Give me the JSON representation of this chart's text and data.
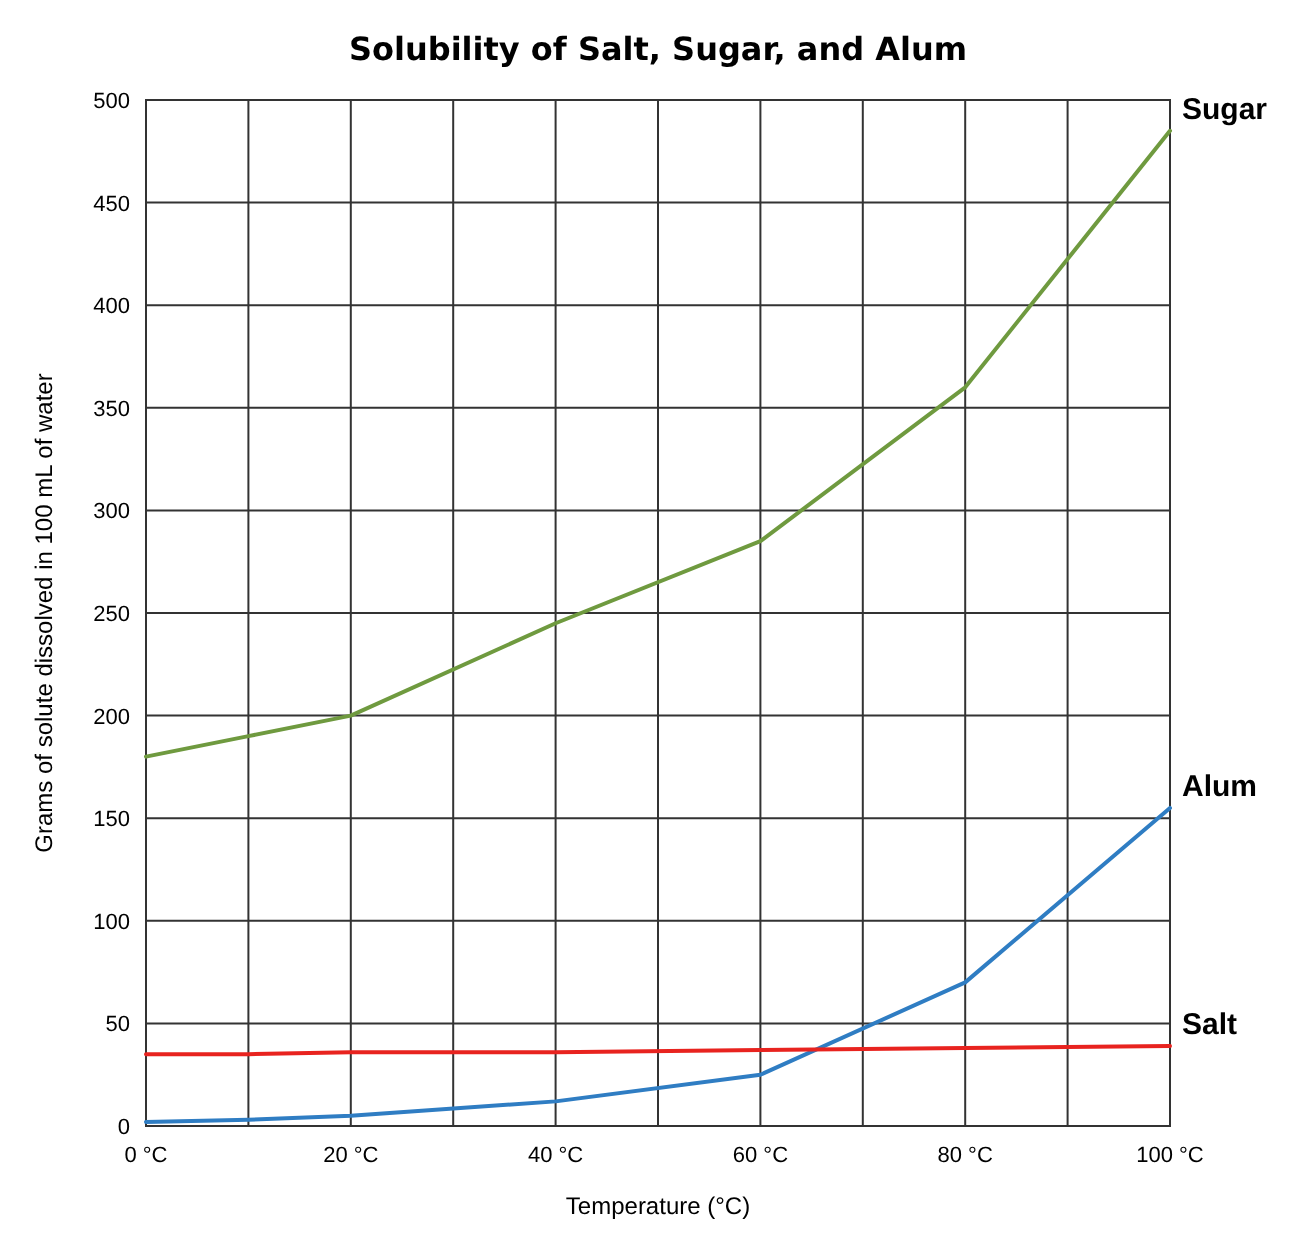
{
  "chart_data": {
    "type": "line",
    "title": "Solubility of Salt, Sugar, and Alum",
    "xlabel": "Temperature (°C)",
    "ylabel": "Grams of solute dissolved in 100 mL of water",
    "x": [
      0,
      10,
      20,
      40,
      60,
      80,
      100
    ],
    "series": [
      {
        "name": "Sugar",
        "color": "#6f9a3f",
        "values": [
          180,
          190,
          200,
          245,
          285,
          360,
          485
        ]
      },
      {
        "name": "Alum",
        "color": "#2f7dc3",
        "values": [
          2,
          3,
          5,
          12,
          25,
          70,
          155
        ]
      },
      {
        "name": "Salt",
        "color": "#e8231f",
        "values": [
          35,
          35,
          36,
          36,
          37,
          38,
          39
        ]
      }
    ],
    "xlim": [
      0,
      100
    ],
    "ylim": [
      0,
      500
    ],
    "xticks": [
      {
        "value": 0,
        "label": "0 °C"
      },
      {
        "value": 10,
        "label": null
      },
      {
        "value": 20,
        "label": "20 °C"
      },
      {
        "value": 30,
        "label": null
      },
      {
        "value": 40,
        "label": "40 °C"
      },
      {
        "value": 50,
        "label": null
      },
      {
        "value": 60,
        "label": "60 °C"
      },
      {
        "value": 70,
        "label": null
      },
      {
        "value": 80,
        "label": "80 °C"
      },
      {
        "value": 90,
        "label": null
      },
      {
        "value": 100,
        "label": "100 °C"
      }
    ],
    "yticks": [
      0,
      50,
      100,
      150,
      200,
      250,
      300,
      350,
      400,
      450,
      500
    ],
    "grid": true,
    "marker": "none",
    "line_style": "solid"
  }
}
